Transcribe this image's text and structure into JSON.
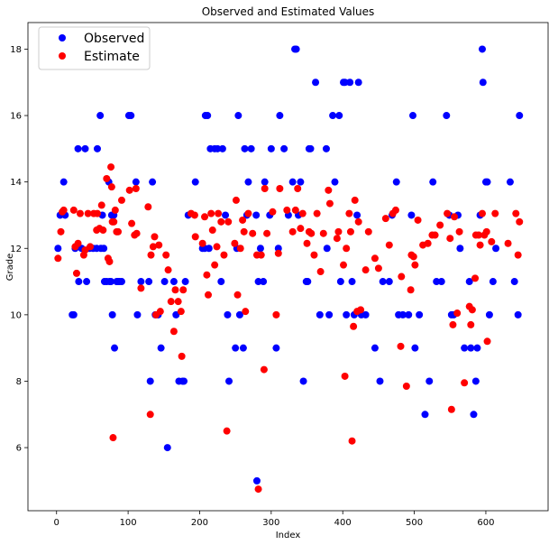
{
  "chart_data": {
    "type": "scatter",
    "title": "Observed and Estimated Values",
    "xlabel": "Index",
    "ylabel": "Grade",
    "xlim": [
      -40,
      687
    ],
    "ylim": [
      4.1,
      18.8
    ],
    "xticks": [
      0,
      100,
      200,
      300,
      400,
      500,
      600
    ],
    "yticks": [
      6,
      8,
      10,
      12,
      14,
      16,
      18
    ],
    "grid": false,
    "legend": "top-left",
    "series": [
      {
        "name": "Observed",
        "color": "#0000ff",
        "points": [
          [
            2,
            12
          ],
          [
            5,
            13
          ],
          [
            10,
            14
          ],
          [
            12,
            13
          ],
          [
            22,
            10
          ],
          [
            24,
            10
          ],
          [
            26,
            12
          ],
          [
            30,
            15
          ],
          [
            31,
            11
          ],
          [
            35,
            12
          ],
          [
            40,
            15
          ],
          [
            42,
            11
          ],
          [
            46,
            12
          ],
          [
            51,
            12
          ],
          [
            56,
            12
          ],
          [
            57,
            15
          ],
          [
            61,
            16
          ],
          [
            62,
            12
          ],
          [
            64,
            13
          ],
          [
            66,
            12
          ],
          [
            67,
            11
          ],
          [
            70,
            11
          ],
          [
            73,
            14
          ],
          [
            74,
            11
          ],
          [
            76,
            11
          ],
          [
            77,
            13
          ],
          [
            78,
            10
          ],
          [
            80,
            13
          ],
          [
            81,
            9
          ],
          [
            84,
            11
          ],
          [
            86,
            11
          ],
          [
            88,
            11
          ],
          [
            91,
            11
          ],
          [
            101,
            16
          ],
          [
            104,
            16
          ],
          [
            111,
            14
          ],
          [
            113,
            10
          ],
          [
            118,
            11
          ],
          [
            129,
            11
          ],
          [
            131,
            8
          ],
          [
            134,
            14
          ],
          [
            138,
            10
          ],
          [
            142,
            10
          ],
          [
            146,
            9
          ],
          [
            151,
            11
          ],
          [
            155,
            6
          ],
          [
            164,
            11
          ],
          [
            167,
            10
          ],
          [
            171,
            8
          ],
          [
            176,
            8
          ],
          [
            178,
            8
          ],
          [
            180,
            11
          ],
          [
            184,
            13
          ],
          [
            194,
            14
          ],
          [
            204,
            12
          ],
          [
            207,
            12
          ],
          [
            208,
            16
          ],
          [
            211,
            16
          ],
          [
            213,
            12
          ],
          [
            215,
            15
          ],
          [
            221,
            15
          ],
          [
            225,
            15
          ],
          [
            230,
            11
          ],
          [
            232,
            15
          ],
          [
            236,
            13
          ],
          [
            239,
            10
          ],
          [
            241,
            8
          ],
          [
            250,
            9
          ],
          [
            252,
            12
          ],
          [
            254,
            16
          ],
          [
            256,
            10
          ],
          [
            261,
            9
          ],
          [
            263,
            15
          ],
          [
            266,
            13
          ],
          [
            268,
            14
          ],
          [
            272,
            15
          ],
          [
            279,
            13
          ],
          [
            280,
            5
          ],
          [
            282,
            11
          ],
          [
            285,
            12
          ],
          [
            289,
            11
          ],
          [
            291,
            14
          ],
          [
            298,
            13
          ],
          [
            300,
            15
          ],
          [
            307,
            9
          ],
          [
            310,
            12
          ],
          [
            312,
            16
          ],
          [
            318,
            15
          ],
          [
            324,
            13
          ],
          [
            330,
            14
          ],
          [
            333,
            18
          ],
          [
            335,
            18
          ],
          [
            338,
            13
          ],
          [
            341,
            14
          ],
          [
            345,
            8
          ],
          [
            349,
            11
          ],
          [
            351,
            11
          ],
          [
            353,
            15
          ],
          [
            355,
            15
          ],
          [
            362,
            17
          ],
          [
            368,
            10
          ],
          [
            377,
            15
          ],
          [
            378,
            12
          ],
          [
            381,
            10
          ],
          [
            386,
            16
          ],
          [
            389,
            14
          ],
          [
            395,
            16
          ],
          [
            397,
            11
          ],
          [
            401,
            17
          ],
          [
            403,
            17
          ],
          [
            405,
            10
          ],
          [
            410,
            17
          ],
          [
            413,
            11
          ],
          [
            416,
            10
          ],
          [
            420,
            13
          ],
          [
            422,
            17
          ],
          [
            426,
            10
          ],
          [
            432,
            10
          ],
          [
            445,
            9
          ],
          [
            452,
            8
          ],
          [
            456,
            11
          ],
          [
            465,
            11
          ],
          [
            469,
            13
          ],
          [
            475,
            14
          ],
          [
            478,
            10
          ],
          [
            484,
            10
          ],
          [
            492,
            10
          ],
          [
            496,
            13
          ],
          [
            498,
            16
          ],
          [
            501,
            9
          ],
          [
            507,
            10
          ],
          [
            515,
            7
          ],
          [
            521,
            8
          ],
          [
            526,
            14
          ],
          [
            531,
            11
          ],
          [
            538,
            11
          ],
          [
            545,
            16
          ],
          [
            549,
            13
          ],
          [
            552,
            10
          ],
          [
            555,
            10
          ],
          [
            561,
            13
          ],
          [
            564,
            12
          ],
          [
            570,
            9
          ],
          [
            577,
            11
          ],
          [
            579,
            9
          ],
          [
            583,
            7
          ],
          [
            586,
            8
          ],
          [
            588,
            9
          ],
          [
            592,
            13
          ],
          [
            595,
            18
          ],
          [
            596,
            17
          ],
          [
            600,
            14
          ],
          [
            602,
            14
          ],
          [
            605,
            10
          ],
          [
            610,
            11
          ],
          [
            614,
            12
          ],
          [
            634,
            14
          ],
          [
            640,
            11
          ],
          [
            645,
            10
          ],
          [
            647,
            16
          ]
        ]
      },
      {
        "name": "Estimate",
        "color": "#ff0000",
        "points": [
          [
            2,
            11.7
          ],
          [
            6,
            12.5
          ],
          [
            8,
            13.1
          ],
          [
            10,
            13.15
          ],
          [
            24,
            13.15
          ],
          [
            26,
            12.05
          ],
          [
            28,
            11.25
          ],
          [
            30,
            12.15
          ],
          [
            33,
            13.05
          ],
          [
            38,
            11.8
          ],
          [
            40,
            11.95
          ],
          [
            44,
            13.05
          ],
          [
            47,
            12.05
          ],
          [
            52,
            13.05
          ],
          [
            56,
            12.55
          ],
          [
            57,
            13.05
          ],
          [
            60,
            12.6
          ],
          [
            63,
            13.3
          ],
          [
            65,
            12.55
          ],
          [
            70,
            14.1
          ],
          [
            72,
            11.7
          ],
          [
            74,
            11.6
          ],
          [
            76,
            14.45
          ],
          [
            77,
            13.85
          ],
          [
            78,
            12.8
          ],
          [
            79,
            6.3
          ],
          [
            80,
            12.8
          ],
          [
            82,
            13.15
          ],
          [
            84,
            12.5
          ],
          [
            86,
            12.5
          ],
          [
            91,
            13.45
          ],
          [
            102,
            13.75
          ],
          [
            105,
            12.75
          ],
          [
            109,
            12.4
          ],
          [
            111,
            13.8
          ],
          [
            112,
            12.45
          ],
          [
            118,
            10.8
          ],
          [
            128,
            13.25
          ],
          [
            131,
            7.0
          ],
          [
            132,
            11.8
          ],
          [
            135,
            12.05
          ],
          [
            137,
            12.35
          ],
          [
            139,
            10.0
          ],
          [
            143,
            12.1
          ],
          [
            145,
            10.1
          ],
          [
            153,
            11.8
          ],
          [
            156,
            11.35
          ],
          [
            160,
            10.4
          ],
          [
            164,
            9.5
          ],
          [
            166,
            10.75
          ],
          [
            170,
            10.4
          ],
          [
            174,
            10.1
          ],
          [
            175,
            8.75
          ],
          [
            177,
            10.75
          ],
          [
            188,
            13.05
          ],
          [
            193,
            13.0
          ],
          [
            194,
            12.35
          ],
          [
            204,
            12.15
          ],
          [
            207,
            12.95
          ],
          [
            210,
            11.2
          ],
          [
            212,
            10.6
          ],
          [
            216,
            13.05
          ],
          [
            218,
            12.55
          ],
          [
            221,
            11.5
          ],
          [
            224,
            12.05
          ],
          [
            226,
            13.05
          ],
          [
            230,
            12.8
          ],
          [
            234,
            11.8
          ],
          [
            238,
            6.5
          ],
          [
            240,
            12.8
          ],
          [
            249,
            12.15
          ],
          [
            251,
            13.45
          ],
          [
            253,
            10.6
          ],
          [
            257,
            12.0
          ],
          [
            260,
            12.85
          ],
          [
            262,
            12.5
          ],
          [
            264,
            10.1
          ],
          [
            268,
            13.05
          ],
          [
            274,
            12.45
          ],
          [
            280,
            11.8
          ],
          [
            282,
            4.75
          ],
          [
            286,
            11.8
          ],
          [
            290,
            8.35
          ],
          [
            291,
            13.8
          ],
          [
            294,
            12.45
          ],
          [
            302,
            13.1
          ],
          [
            307,
            10.0
          ],
          [
            310,
            11.85
          ],
          [
            312,
            13.8
          ],
          [
            322,
            13.15
          ],
          [
            330,
            12.5
          ],
          [
            334,
            13.15
          ],
          [
            337,
            13.8
          ],
          [
            341,
            12.6
          ],
          [
            344,
            13.05
          ],
          [
            350,
            12.15
          ],
          [
            353,
            12.5
          ],
          [
            356,
            12.45
          ],
          [
            360,
            11.8
          ],
          [
            364,
            13.05
          ],
          [
            369,
            11.3
          ],
          [
            373,
            12.45
          ],
          [
            380,
            13.75
          ],
          [
            382,
            13.35
          ],
          [
            392,
            12.3
          ],
          [
            394,
            12.5
          ],
          [
            401,
            11.5
          ],
          [
            403,
            8.15
          ],
          [
            405,
            12.0
          ],
          [
            409,
            13.05
          ],
          [
            411,
            12.5
          ],
          [
            413,
            6.2
          ],
          [
            415,
            9.65
          ],
          [
            417,
            13.45
          ],
          [
            420,
            10.1
          ],
          [
            422,
            12.8
          ],
          [
            425,
            10.15
          ],
          [
            432,
            11.35
          ],
          [
            436,
            12.5
          ],
          [
            445,
            11.7
          ],
          [
            450,
            11.4
          ],
          [
            460,
            12.9
          ],
          [
            465,
            12.1
          ],
          [
            470,
            13.05
          ],
          [
            474,
            13.15
          ],
          [
            481,
            9.05
          ],
          [
            482,
            11.15
          ],
          [
            489,
            7.85
          ],
          [
            495,
            10.75
          ],
          [
            496,
            11.8
          ],
          [
            499,
            11.75
          ],
          [
            501,
            11.5
          ],
          [
            505,
            12.85
          ],
          [
            512,
            12.1
          ],
          [
            519,
            12.15
          ],
          [
            525,
            12.4
          ],
          [
            529,
            12.4
          ],
          [
            536,
            12.7
          ],
          [
            546,
            13.05
          ],
          [
            550,
            12.3
          ],
          [
            552,
            7.15
          ],
          [
            554,
            9.7
          ],
          [
            556,
            12.95
          ],
          [
            560,
            10.05
          ],
          [
            563,
            12.5
          ],
          [
            570,
            7.95
          ],
          [
            577,
            10.25
          ],
          [
            579,
            9.7
          ],
          [
            581,
            10.15
          ],
          [
            585,
            11.1
          ],
          [
            586,
            12.4
          ],
          [
            590,
            12.4
          ],
          [
            592,
            12.1
          ],
          [
            595,
            13.05
          ],
          [
            598,
            12.4
          ],
          [
            601,
            12.5
          ],
          [
            602,
            9.2
          ],
          [
            608,
            12.2
          ],
          [
            613,
            13.05
          ],
          [
            631,
            12.15
          ],
          [
            642,
            13.05
          ],
          [
            645,
            11.8
          ],
          [
            647,
            12.8
          ]
        ]
      }
    ]
  }
}
